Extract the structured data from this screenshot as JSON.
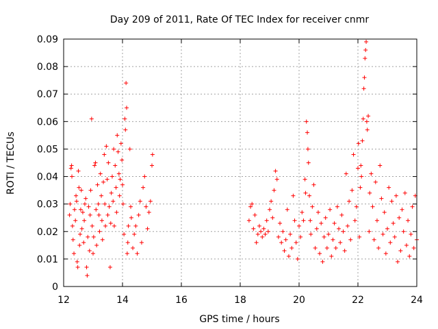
{
  "chart_data": {
    "type": "scatter",
    "title": "Day 209 of 2011, Rate Of TEC Index for receiver cnmr",
    "xlabel": "GPS time / hours",
    "ylabel": "ROTI / TECUs",
    "xlim": [
      12,
      24
    ],
    "ylim": [
      0,
      0.09
    ],
    "xticks": [
      "12",
      "14",
      "16",
      "18",
      "20",
      "22",
      "24"
    ],
    "yticks": [
      "0",
      "0.01",
      "0.02",
      "0.03",
      "0.04",
      "0.05",
      "0.06",
      "0.07",
      "0.08",
      "0.09"
    ],
    "grid": true,
    "marker": "+",
    "color": "#ff0000",
    "series": [
      {
        "points": [
          [
            12.2,
            0.026
          ],
          [
            12.22,
            0.03
          ],
          [
            12.25,
            0.043
          ],
          [
            12.27,
            0.044
          ],
          [
            12.28,
            0.04
          ],
          [
            12.3,
            0.022
          ],
          [
            12.32,
            0.017
          ],
          [
            12.35,
            0.012
          ],
          [
            12.37,
            0.028
          ],
          [
            12.4,
            0.024
          ],
          [
            12.42,
            0.033
          ],
          [
            12.44,
            0.031
          ],
          [
            12.46,
            0.009
          ],
          [
            12.48,
            0.007
          ],
          [
            12.5,
            0.042
          ],
          [
            12.52,
            0.036
          ],
          [
            12.54,
            0.015
          ],
          [
            12.56,
            0.019
          ],
          [
            12.58,
            0.028
          ],
          [
            12.6,
            0.035
          ],
          [
            12.62,
            0.021
          ],
          [
            12.65,
            0.027
          ],
          [
            12.68,
            0.016
          ],
          [
            12.7,
            0.024
          ],
          [
            12.72,
            0.03
          ],
          [
            12.75,
            0.032
          ],
          [
            12.78,
            0.007
          ],
          [
            12.8,
            0.004
          ],
          [
            12.82,
            0.018
          ],
          [
            12.85,
            0.029
          ],
          [
            12.88,
            0.013
          ],
          [
            12.9,
            0.026
          ],
          [
            12.92,
            0.035
          ],
          [
            12.95,
            0.061
          ],
          [
            12.97,
            0.022
          ],
          [
            13.0,
            0.012
          ],
          [
            13.02,
            0.018
          ],
          [
            13.05,
            0.044
          ],
          [
            13.08,
            0.045
          ],
          [
            13.1,
            0.028
          ],
          [
            13.12,
            0.015
          ],
          [
            13.15,
            0.037
          ],
          [
            13.18,
            0.03
          ],
          [
            13.2,
            0.026
          ],
          [
            13.22,
            0.02
          ],
          [
            13.25,
            0.041
          ],
          [
            13.28,
            0.033
          ],
          [
            13.3,
            0.024
          ],
          [
            13.32,
            0.017
          ],
          [
            13.35,
            0.038
          ],
          [
            13.38,
            0.048
          ],
          [
            13.4,
            0.03
          ],
          [
            13.42,
            0.022
          ],
          [
            13.45,
            0.051
          ],
          [
            13.48,
            0.039
          ],
          [
            13.5,
            0.026
          ],
          [
            13.52,
            0.045
          ],
          [
            13.55,
            0.029
          ],
          [
            13.58,
            0.007
          ],
          [
            13.6,
            0.023
          ],
          [
            13.62,
            0.034
          ],
          [
            13.65,
            0.04
          ],
          [
            13.68,
            0.031
          ],
          [
            13.7,
            0.05
          ],
          [
            13.72,
            0.022
          ],
          [
            13.75,
            0.044
          ],
          [
            13.78,
            0.036
          ],
          [
            13.8,
            0.027
          ],
          [
            13.82,
            0.055
          ],
          [
            13.85,
            0.049
          ],
          [
            13.88,
            0.041
          ],
          [
            13.9,
            0.033
          ],
          [
            13.92,
            0.039
          ],
          [
            13.95,
            0.052
          ],
          [
            13.98,
            0.046
          ],
          [
            14.0,
            0.037
          ],
          [
            14.02,
            0.03
          ],
          [
            14.05,
            0.019
          ],
          [
            14.08,
            0.061
          ],
          [
            14.1,
            0.057
          ],
          [
            14.12,
            0.074
          ],
          [
            14.14,
            0.065
          ],
          [
            14.16,
            0.012
          ],
          [
            14.18,
            0.016
          ],
          [
            14.2,
            0.022
          ],
          [
            14.25,
            0.05
          ],
          [
            14.28,
            0.029
          ],
          [
            14.3,
            0.025
          ],
          [
            14.35,
            0.014
          ],
          [
            14.4,
            0.019
          ],
          [
            14.45,
            0.022
          ],
          [
            14.5,
            0.012
          ],
          [
            14.55,
            0.026
          ],
          [
            14.6,
            0.031
          ],
          [
            14.65,
            0.016
          ],
          [
            14.7,
            0.036
          ],
          [
            14.75,
            0.04
          ],
          [
            14.8,
            0.029
          ],
          [
            14.85,
            0.021
          ],
          [
            14.9,
            0.027
          ],
          [
            14.95,
            0.031
          ],
          [
            15.0,
            0.044
          ],
          [
            15.02,
            0.048
          ],
          [
            18.3,
            0.024
          ],
          [
            18.35,
            0.029
          ],
          [
            18.4,
            0.03
          ],
          [
            18.45,
            0.021
          ],
          [
            18.5,
            0.026
          ],
          [
            18.55,
            0.016
          ],
          [
            18.6,
            0.019
          ],
          [
            18.65,
            0.022
          ],
          [
            18.7,
            0.02
          ],
          [
            18.75,
            0.018
          ],
          [
            18.8,
            0.021
          ],
          [
            18.85,
            0.019
          ],
          [
            18.9,
            0.024
          ],
          [
            18.95,
            0.02
          ],
          [
            19.0,
            0.028
          ],
          [
            19.05,
            0.031
          ],
          [
            19.1,
            0.025
          ],
          [
            19.15,
            0.035
          ],
          [
            19.2,
            0.042
          ],
          [
            19.25,
            0.039
          ],
          [
            19.3,
            0.018
          ],
          [
            19.35,
            0.023
          ],
          [
            19.4,
            0.016
          ],
          [
            19.45,
            0.02
          ],
          [
            19.5,
            0.013
          ],
          [
            19.55,
            0.017
          ],
          [
            19.6,
            0.028
          ],
          [
            19.65,
            0.011
          ],
          [
            19.7,
            0.019
          ],
          [
            19.75,
            0.014
          ],
          [
            19.8,
            0.033
          ],
          [
            19.85,
            0.024
          ],
          [
            19.9,
            0.016
          ],
          [
            19.95,
            0.01
          ],
          [
            20.0,
            0.022
          ],
          [
            20.05,
            0.018
          ],
          [
            20.1,
            0.027
          ],
          [
            20.15,
            0.024
          ],
          [
            20.2,
            0.039
          ],
          [
            20.22,
            0.034
          ],
          [
            20.25,
            0.06
          ],
          [
            20.28,
            0.056
          ],
          [
            20.3,
            0.05
          ],
          [
            20.32,
            0.045
          ],
          [
            20.35,
            0.033
          ],
          [
            20.38,
            0.024
          ],
          [
            20.4,
            0.019
          ],
          [
            20.45,
            0.029
          ],
          [
            20.5,
            0.037
          ],
          [
            20.55,
            0.014
          ],
          [
            20.6,
            0.021
          ],
          [
            20.65,
            0.027
          ],
          [
            20.7,
            0.012
          ],
          [
            20.75,
            0.023
          ],
          [
            20.8,
            0.009
          ],
          [
            20.85,
            0.018
          ],
          [
            20.9,
            0.025
          ],
          [
            20.95,
            0.014
          ],
          [
            21.0,
            0.019
          ],
          [
            21.05,
            0.028
          ],
          [
            21.1,
            0.011
          ],
          [
            21.15,
            0.017
          ],
          [
            21.2,
            0.023
          ],
          [
            21.25,
            0.014
          ],
          [
            21.3,
            0.029
          ],
          [
            21.35,
            0.021
          ],
          [
            21.4,
            0.016
          ],
          [
            21.45,
            0.026
          ],
          [
            21.5,
            0.02
          ],
          [
            21.55,
            0.013
          ],
          [
            21.6,
            0.041
          ],
          [
            21.65,
            0.022
          ],
          [
            21.7,
            0.031
          ],
          [
            21.75,
            0.017
          ],
          [
            21.8,
            0.035
          ],
          [
            21.85,
            0.048
          ],
          [
            21.9,
            0.024
          ],
          [
            21.95,
            0.029
          ],
          [
            22.0,
            0.043
          ],
          [
            22.02,
            0.052
          ],
          [
            22.05,
            0.018
          ],
          [
            22.08,
            0.036
          ],
          [
            22.1,
            0.044
          ],
          [
            22.12,
            0.04
          ],
          [
            22.15,
            0.053
          ],
          [
            22.18,
            0.061
          ],
          [
            22.2,
            0.072
          ],
          [
            22.22,
            0.076
          ],
          [
            22.24,
            0.083
          ],
          [
            22.26,
            0.086
          ],
          [
            22.28,
            0.089
          ],
          [
            22.3,
            0.06
          ],
          [
            22.32,
            0.057
          ],
          [
            22.35,
            0.062
          ],
          [
            22.38,
            0.02
          ],
          [
            22.4,
            0.034
          ],
          [
            22.45,
            0.041
          ],
          [
            22.5,
            0.029
          ],
          [
            22.55,
            0.017
          ],
          [
            22.6,
            0.038
          ],
          [
            22.65,
            0.024
          ],
          [
            22.7,
            0.014
          ],
          [
            22.75,
            0.044
          ],
          [
            22.8,
            0.032
          ],
          [
            22.85,
            0.019
          ],
          [
            22.9,
            0.027
          ],
          [
            22.95,
            0.012
          ],
          [
            23.0,
            0.021
          ],
          [
            23.05,
            0.036
          ],
          [
            23.1,
            0.016
          ],
          [
            23.15,
            0.031
          ],
          [
            23.2,
            0.023
          ],
          [
            23.25,
            0.018
          ],
          [
            23.3,
            0.033
          ],
          [
            23.35,
            0.009
          ],
          [
            23.4,
            0.025
          ],
          [
            23.45,
            0.013
          ],
          [
            23.5,
            0.028
          ],
          [
            23.55,
            0.02
          ],
          [
            23.6,
            0.034
          ],
          [
            23.65,
            0.015
          ],
          [
            23.7,
            0.024
          ],
          [
            23.75,
            0.011
          ],
          [
            23.8,
            0.019
          ],
          [
            23.85,
            0.029
          ],
          [
            23.9,
            0.014
          ],
          [
            23.95,
            0.033
          ],
          [
            24.0,
            0.017
          ]
        ]
      }
    ]
  }
}
